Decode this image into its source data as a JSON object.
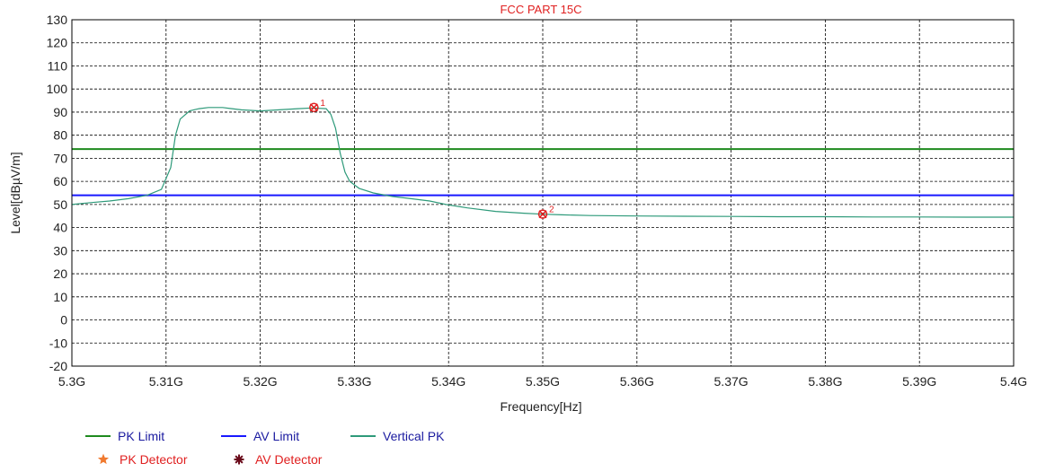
{
  "chart_data": {
    "type": "line",
    "title": "FCC  PART 15C",
    "xlabel": "Frequency[Hz]",
    "ylabel": "Level[dBµV/m]",
    "xlim": [
      5.3,
      5.4
    ],
    "ylim": [
      -20,
      130
    ],
    "x_ticks": [
      5.3,
      5.31,
      5.32,
      5.33,
      5.34,
      5.35,
      5.36,
      5.37,
      5.38,
      5.39,
      5.4
    ],
    "x_tick_labels": [
      "5.3G",
      "5.31G",
      "5.32G",
      "5.33G",
      "5.34G",
      "5.35G",
      "5.36G",
      "5.37G",
      "5.38G",
      "5.39G",
      "5.4G"
    ],
    "y_ticks": [
      -20,
      -10,
      0,
      10,
      20,
      30,
      40,
      50,
      60,
      70,
      80,
      90,
      100,
      110,
      120,
      130
    ],
    "y_tick_labels": [
      "-20",
      "-10",
      "0",
      "10",
      "20",
      "30",
      "40",
      "50",
      "60",
      "70",
      "80",
      "90",
      "100",
      "110",
      "120",
      "130"
    ],
    "grid": true,
    "legend_position": "bottom-left",
    "series": [
      {
        "name": "PK Limit",
        "color": "#1e8a1e",
        "x": [
          5.3,
          5.4
        ],
        "y": [
          74,
          74
        ]
      },
      {
        "name": "AV Limit",
        "color": "#1818ff",
        "x": [
          5.3,
          5.4
        ],
        "y": [
          54,
          54
        ]
      },
      {
        "name": "Vertical PK",
        "color": "#2e9a7a",
        "x": [
          5.3,
          5.302,
          5.304,
          5.306,
          5.308,
          5.3095,
          5.3105,
          5.311,
          5.3115,
          5.3125,
          5.3135,
          5.3145,
          5.316,
          5.318,
          5.32,
          5.322,
          5.324,
          5.3255,
          5.327,
          5.3275,
          5.328,
          5.3285,
          5.329,
          5.3295,
          5.3305,
          5.332,
          5.334,
          5.336,
          5.338,
          5.34,
          5.342,
          5.345,
          5.348,
          5.35,
          5.352,
          5.355,
          5.36,
          5.365,
          5.37,
          5.375,
          5.38,
          5.385,
          5.39,
          5.395,
          5.4
        ],
        "y": [
          50,
          50.8,
          51.5,
          52.5,
          54,
          56.5,
          66,
          80,
          87,
          90.5,
          91.5,
          92,
          92,
          91,
          90.5,
          91,
          91.5,
          91.8,
          91.5,
          89,
          83,
          72,
          64,
          60,
          57,
          55,
          53.5,
          52.5,
          51.5,
          49.8,
          48.5,
          47,
          46.2,
          45.8,
          45.5,
          45.2,
          45,
          44.9,
          44.8,
          44.7,
          44.7,
          44.6,
          44.6,
          44.5,
          44.5
        ]
      }
    ],
    "markers": [
      {
        "label": "1",
        "x": 5.3257,
        "y": 92,
        "detector": "PK Detector"
      },
      {
        "label": "2",
        "x": 5.35,
        "y": 45.8,
        "detector": "PK Detector"
      }
    ],
    "legend": [
      {
        "name": "PK Limit",
        "kind": "line",
        "color": "#1e8a1e"
      },
      {
        "name": "AV Limit",
        "kind": "line",
        "color": "#1818ff"
      },
      {
        "name": "Vertical PK",
        "kind": "line",
        "color": "#2e9a7a"
      },
      {
        "name": "PK Detector",
        "kind": "star",
        "color": "#f07a30"
      },
      {
        "name": "AV Detector",
        "kind": "burst",
        "color": "#6a0a1a"
      }
    ],
    "colors": {
      "title": "#e02020",
      "legend_text": "#1a1aa0",
      "detector_text": "#e02020",
      "marker": "#e02020",
      "grid": "#000000",
      "frame": "#000000"
    }
  }
}
